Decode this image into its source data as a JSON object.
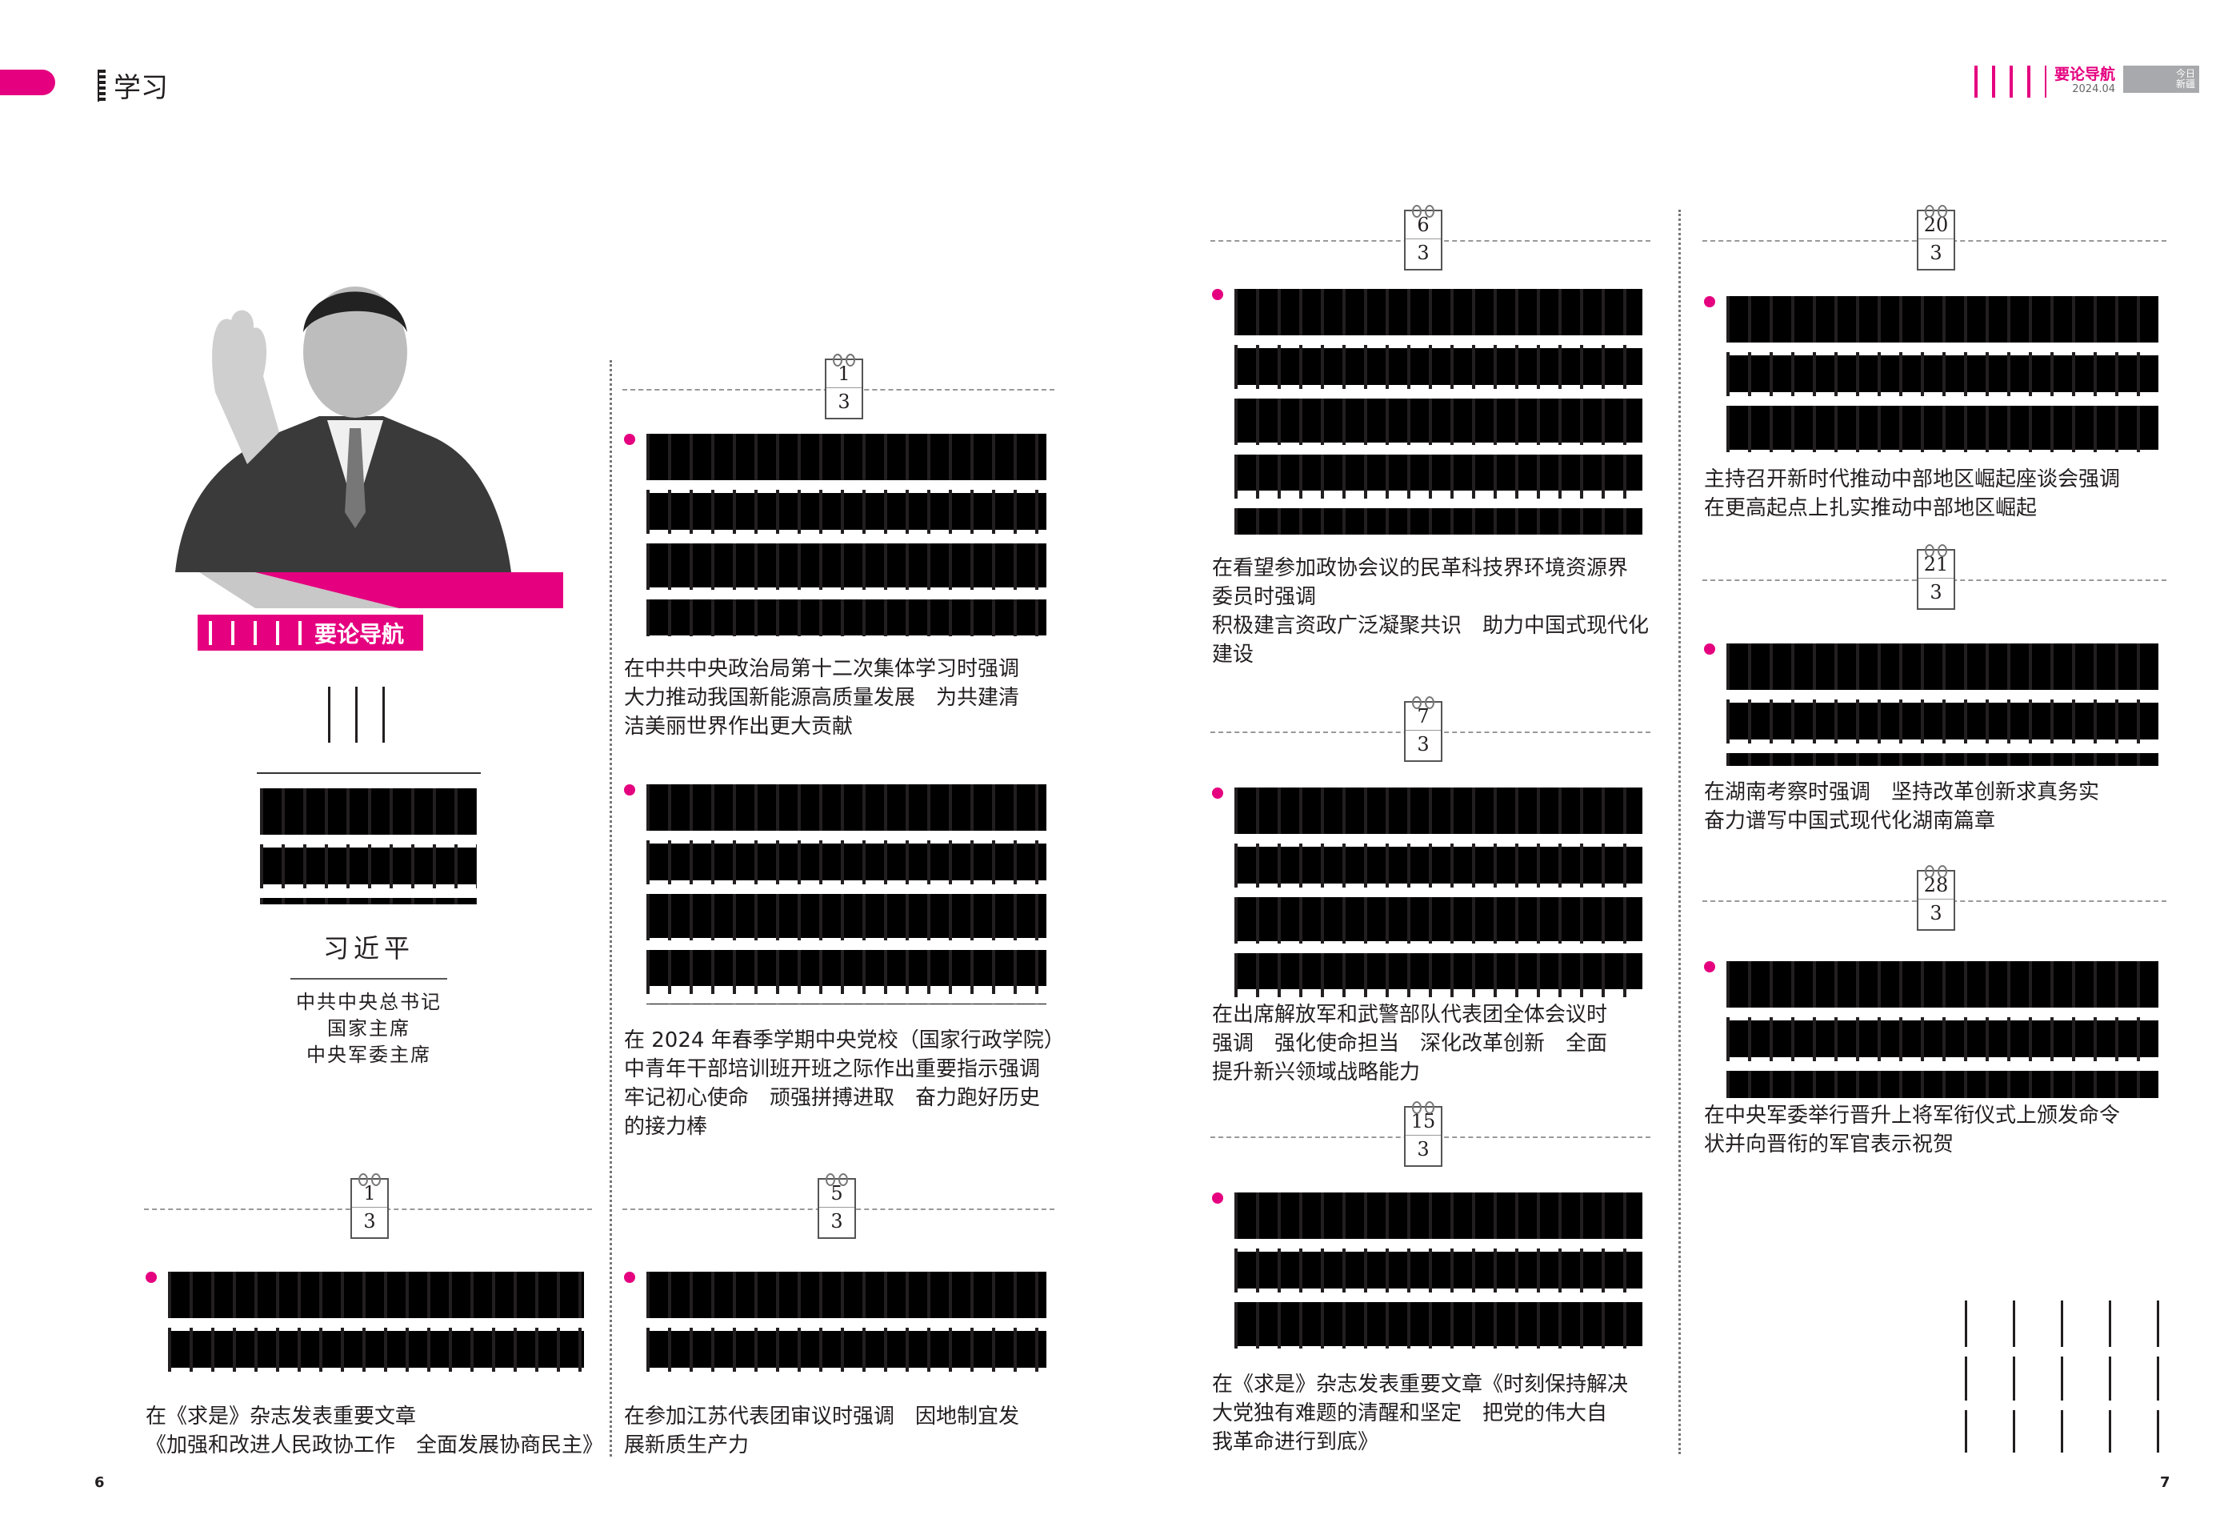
{
  "header_left": {
    "section_title": "学习"
  },
  "header_right": {
    "column_title": "要论导航",
    "issue": "2024.04",
    "magazine_name": "今日新疆"
  },
  "feature": {
    "banner_label": "要论导航",
    "author": "习近平",
    "titles": [
      "中共中央总书记",
      "国家主席",
      "中央军委主席"
    ]
  },
  "colors": {
    "accent": "#e5007f",
    "gray_badge": "#a7a9ac"
  },
  "entries": [
    {
      "day": "1",
      "month": "3",
      "caption": "在中共中央政治局第十二次集体学习时强调\n大力推动我国新能源高质量发展　为共建清\n洁美丽世界作出更大贡献"
    },
    {
      "day": "1",
      "month": "3",
      "caption": "在 2024 年春季学期中央党校（国家行政学院）\n中青年干部培训班开班之际作出重要指示强调\n牢记初心使命　顽强拼搏进取　奋力跑好历史\n的接力棒"
    },
    {
      "day": "1",
      "month": "3",
      "caption": "在《求是》杂志发表重要文章\n《加强和改进人民政协工作　全面发展协商民主》"
    },
    {
      "day": "5",
      "month": "3",
      "caption": "在参加江苏代表团审议时强调　因地制宜发\n展新质生产力"
    },
    {
      "day": "6",
      "month": "3",
      "caption": "在看望参加政协会议的民革科技界环境资源界\n委员时强调\n积极建言资政广泛凝聚共识　助力中国式现代化\n建设"
    },
    {
      "day": "7",
      "month": "3",
      "caption": "在出席解放军和武警部队代表团全体会议时\n强调　强化使命担当　深化改革创新　全面\n提升新兴领域战略能力"
    },
    {
      "day": "15",
      "month": "3",
      "caption": "在《求是》杂志发表重要文章《时刻保持解决\n大党独有难题的清醒和坚定　把党的伟大自\n我革命进行到底》"
    },
    {
      "day": "20",
      "month": "3",
      "caption": "主持召开新时代推动中部地区崛起座谈会强调\n在更高起点上扎实推动中部地区崛起"
    },
    {
      "day": "21",
      "month": "3",
      "caption": "在湖南考察时强调　坚持改革创新求真务实\n奋力谱写中国式现代化湖南篇章"
    },
    {
      "day": "28",
      "month": "3",
      "caption": "在中央军委举行晋升上将军衔仪式上颁发命令\n状并向晋衔的军官表示祝贺"
    }
  ],
  "footer": {
    "page_left": "6",
    "page_right": "7"
  }
}
